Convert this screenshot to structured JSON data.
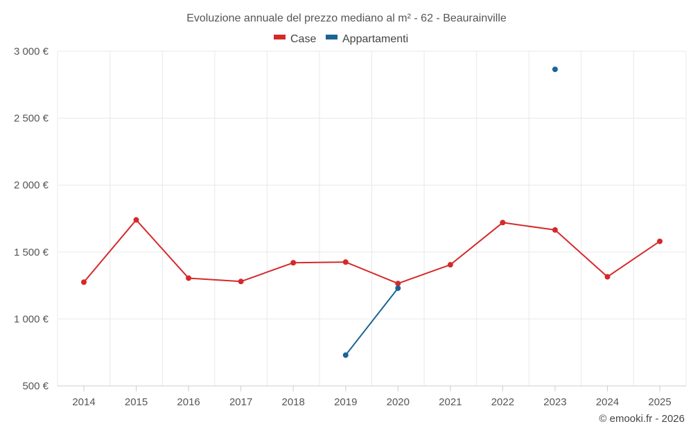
{
  "chart_data": {
    "type": "line",
    "title": "Evoluzione annuale del prezzo mediano al m² - 62 - Beaurainville",
    "categories": [
      "2014",
      "2015",
      "2016",
      "2017",
      "2018",
      "2019",
      "2020",
      "2021",
      "2022",
      "2023",
      "2024",
      "2025"
    ],
    "y_ticks": [
      "500 €",
      "1 000 €",
      "1 500 €",
      "2 000 €",
      "2 500 €",
      "3 000 €"
    ],
    "ylim": [
      500,
      3000
    ],
    "grid": true,
    "legend_position": "top-center",
    "series": [
      {
        "name": "Case",
        "color": "#d42a2a",
        "values": [
          1275,
          1740,
          1305,
          1280,
          1420,
          1425,
          1265,
          1405,
          1720,
          1665,
          1315,
          1580
        ]
      },
      {
        "name": "Appartamenti",
        "color": "#1a6496",
        "values": [
          null,
          null,
          null,
          null,
          null,
          730,
          1230,
          null,
          null,
          2865,
          null,
          null
        ]
      }
    ],
    "xlabel": "",
    "ylabel": ""
  },
  "credit": "© emooki.fr - 2026"
}
